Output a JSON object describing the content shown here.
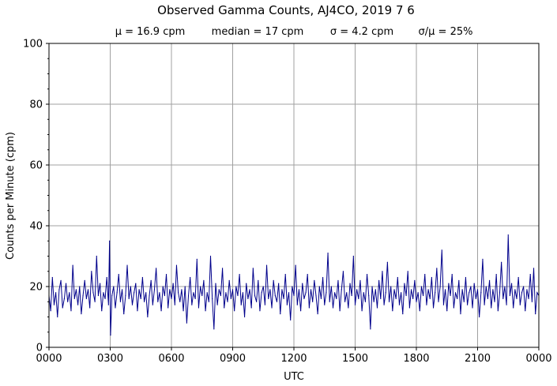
{
  "chart_data": {
    "type": "line",
    "title": "Observed Gamma Counts, AJ4CO, 2019 7 6",
    "subtitle": {
      "mean": "μ = 16.9 cpm",
      "median": "median = 17 cpm",
      "sigma": "σ = 4.2 cpm",
      "ratio": "σ/μ = 25%"
    },
    "xlabel": "UTC",
    "ylabel": "Counts per Minute (cpm)",
    "xlim": [
      0,
      1440
    ],
    "ylim": [
      0,
      100
    ],
    "x_ticks": [
      {
        "value": 0,
        "label": "0000"
      },
      {
        "value": 180,
        "label": "0300"
      },
      {
        "value": 360,
        "label": "0600"
      },
      {
        "value": 540,
        "label": "0900"
      },
      {
        "value": 720,
        "label": "1200"
      },
      {
        "value": 900,
        "label": "1500"
      },
      {
        "value": 1080,
        "label": "1800"
      },
      {
        "value": 1260,
        "label": "2100"
      },
      {
        "value": 1440,
        "label": "0000"
      }
    ],
    "y_ticks": [
      {
        "value": 0,
        "label": "0"
      },
      {
        "value": 20,
        "label": "20"
      },
      {
        "value": 40,
        "label": "40"
      },
      {
        "value": 60,
        "label": "60"
      },
      {
        "value": 80,
        "label": "80"
      },
      {
        "value": 100,
        "label": "100"
      }
    ],
    "y_minor_step": 5,
    "grid": true,
    "line_color": "#00008b",
    "series": [
      {
        "x_unit": "minutes UTC",
        "points": [
          [
            0,
            17
          ],
          [
            5,
            12
          ],
          [
            10,
            23
          ],
          [
            15,
            14
          ],
          [
            20,
            18
          ],
          [
            25,
            10
          ],
          [
            30,
            19
          ],
          [
            35,
            22
          ],
          [
            40,
            13
          ],
          [
            45,
            16
          ],
          [
            50,
            21
          ],
          [
            55,
            15
          ],
          [
            60,
            18
          ],
          [
            65,
            12
          ],
          [
            70,
            27
          ],
          [
            75,
            16
          ],
          [
            80,
            19
          ],
          [
            85,
            14
          ],
          [
            90,
            20
          ],
          [
            95,
            11
          ],
          [
            100,
            17
          ],
          [
            105,
            22
          ],
          [
            110,
            16
          ],
          [
            115,
            19
          ],
          [
            120,
            13
          ],
          [
            125,
            25
          ],
          [
            130,
            18
          ],
          [
            135,
            15
          ],
          [
            140,
            30
          ],
          [
            145,
            17
          ],
          [
            150,
            21
          ],
          [
            155,
            12
          ],
          [
            160,
            18
          ],
          [
            165,
            16
          ],
          [
            170,
            23
          ],
          [
            175,
            14
          ],
          [
            178,
            35
          ],
          [
            181,
            4
          ],
          [
            185,
            17
          ],
          [
            190,
            20
          ],
          [
            195,
            13
          ],
          [
            200,
            18
          ],
          [
            205,
            24
          ],
          [
            210,
            15
          ],
          [
            215,
            19
          ],
          [
            220,
            11
          ],
          [
            225,
            17
          ],
          [
            230,
            27
          ],
          [
            235,
            16
          ],
          [
            240,
            20
          ],
          [
            245,
            14
          ],
          [
            250,
            18
          ],
          [
            255,
            21
          ],
          [
            260,
            12
          ],
          [
            265,
            19
          ],
          [
            270,
            16
          ],
          [
            275,
            23
          ],
          [
            280,
            15
          ],
          [
            285,
            18
          ],
          [
            290,
            10
          ],
          [
            295,
            17
          ],
          [
            300,
            22
          ],
          [
            305,
            14
          ],
          [
            310,
            19
          ],
          [
            315,
            26
          ],
          [
            320,
            15
          ],
          [
            325,
            18
          ],
          [
            330,
            12
          ],
          [
            335,
            20
          ],
          [
            340,
            17
          ],
          [
            345,
            24
          ],
          [
            350,
            13
          ],
          [
            355,
            19
          ],
          [
            360,
            16
          ],
          [
            365,
            21
          ],
          [
            370,
            14
          ],
          [
            375,
            27
          ],
          [
            380,
            18
          ],
          [
            385,
            15
          ],
          [
            390,
            19
          ],
          [
            395,
            12
          ],
          [
            400,
            20
          ],
          [
            405,
            8
          ],
          [
            410,
            17
          ],
          [
            415,
            23
          ],
          [
            420,
            14
          ],
          [
            425,
            18
          ],
          [
            430,
            16
          ],
          [
            435,
            29
          ],
          [
            440,
            13
          ],
          [
            445,
            20
          ],
          [
            450,
            17
          ],
          [
            455,
            22
          ],
          [
            460,
            12
          ],
          [
            465,
            18
          ],
          [
            470,
            15
          ],
          [
            475,
            30
          ],
          [
            480,
            16
          ],
          [
            485,
            6
          ],
          [
            490,
            21
          ],
          [
            495,
            14
          ],
          [
            500,
            19
          ],
          [
            505,
            17
          ],
          [
            510,
            26
          ],
          [
            515,
            13
          ],
          [
            520,
            18
          ],
          [
            525,
            15
          ],
          [
            530,
            22
          ],
          [
            535,
            16
          ],
          [
            540,
            19
          ],
          [
            545,
            12
          ],
          [
            550,
            20
          ],
          [
            555,
            17
          ],
          [
            560,
            24
          ],
          [
            565,
            14
          ],
          [
            570,
            18
          ],
          [
            575,
            10
          ],
          [
            580,
            21
          ],
          [
            585,
            16
          ],
          [
            590,
            19
          ],
          [
            595,
            13
          ],
          [
            600,
            26
          ],
          [
            605,
            17
          ],
          [
            610,
            15
          ],
          [
            615,
            22
          ],
          [
            620,
            12
          ],
          [
            625,
            18
          ],
          [
            630,
            20
          ],
          [
            635,
            14
          ],
          [
            640,
            27
          ],
          [
            645,
            16
          ],
          [
            650,
            19
          ],
          [
            655,
            13
          ],
          [
            660,
            22
          ],
          [
            665,
            17
          ],
          [
            670,
            15
          ],
          [
            675,
            21
          ],
          [
            680,
            11
          ],
          [
            685,
            19
          ],
          [
            690,
            16
          ],
          [
            695,
            24
          ],
          [
            700,
            14
          ],
          [
            705,
            18
          ],
          [
            710,
            9
          ],
          [
            715,
            20
          ],
          [
            720,
            17
          ],
          [
            725,
            27
          ],
          [
            730,
            14
          ],
          [
            735,
            19
          ],
          [
            740,
            12
          ],
          [
            745,
            21
          ],
          [
            750,
            16
          ],
          [
            755,
            18
          ],
          [
            760,
            24
          ],
          [
            765,
            13
          ],
          [
            770,
            19
          ],
          [
            775,
            15
          ],
          [
            780,
            22
          ],
          [
            785,
            17
          ],
          [
            790,
            11
          ],
          [
            795,
            20
          ],
          [
            800,
            16
          ],
          [
            805,
            23
          ],
          [
            810,
            14
          ],
          [
            815,
            18
          ],
          [
            820,
            31
          ],
          [
            825,
            15
          ],
          [
            830,
            20
          ],
          [
            835,
            13
          ],
          [
            840,
            18
          ],
          [
            845,
            16
          ],
          [
            850,
            22
          ],
          [
            855,
            12
          ],
          [
            860,
            19
          ],
          [
            865,
            25
          ],
          [
            870,
            15
          ],
          [
            875,
            18
          ],
          [
            880,
            13
          ],
          [
            885,
            21
          ],
          [
            890,
            17
          ],
          [
            895,
            30
          ],
          [
            900,
            14
          ],
          [
            905,
            19
          ],
          [
            910,
            16
          ],
          [
            915,
            22
          ],
          [
            920,
            12
          ],
          [
            925,
            18
          ],
          [
            930,
            15
          ],
          [
            935,
            24
          ],
          [
            940,
            17
          ],
          [
            945,
            6
          ],
          [
            950,
            20
          ],
          [
            955,
            15
          ],
          [
            960,
            19
          ],
          [
            965,
            13
          ],
          [
            970,
            22
          ],
          [
            975,
            16
          ],
          [
            980,
            25
          ],
          [
            985,
            14
          ],
          [
            990,
            18
          ],
          [
            995,
            28
          ],
          [
            1000,
            15
          ],
          [
            1005,
            20
          ],
          [
            1010,
            12
          ],
          [
            1015,
            19
          ],
          [
            1020,
            16
          ],
          [
            1025,
            23
          ],
          [
            1030,
            14
          ],
          [
            1035,
            18
          ],
          [
            1040,
            11
          ],
          [
            1045,
            21
          ],
          [
            1050,
            17
          ],
          [
            1055,
            25
          ],
          [
            1060,
            13
          ],
          [
            1065,
            19
          ],
          [
            1070,
            16
          ],
          [
            1075,
            22
          ],
          [
            1080,
            15
          ],
          [
            1085,
            18
          ],
          [
            1090,
            12
          ],
          [
            1095,
            20
          ],
          [
            1100,
            17
          ],
          [
            1105,
            24
          ],
          [
            1110,
            14
          ],
          [
            1115,
            19
          ],
          [
            1120,
            16
          ],
          [
            1125,
            23
          ],
          [
            1130,
            13
          ],
          [
            1135,
            18
          ],
          [
            1140,
            26
          ],
          [
            1145,
            15
          ],
          [
            1150,
            20
          ],
          [
            1155,
            32
          ],
          [
            1160,
            14
          ],
          [
            1165,
            19
          ],
          [
            1170,
            12
          ],
          [
            1175,
            21
          ],
          [
            1180,
            17
          ],
          [
            1185,
            24
          ],
          [
            1190,
            13
          ],
          [
            1195,
            18
          ],
          [
            1200,
            16
          ],
          [
            1205,
            22
          ],
          [
            1210,
            11
          ],
          [
            1215,
            19
          ],
          [
            1220,
            15
          ],
          [
            1225,
            23
          ],
          [
            1230,
            14
          ],
          [
            1235,
            18
          ],
          [
            1240,
            20
          ],
          [
            1245,
            13
          ],
          [
            1250,
            21
          ],
          [
            1255,
            16
          ],
          [
            1260,
            19
          ],
          [
            1265,
            10
          ],
          [
            1270,
            18
          ],
          [
            1275,
            29
          ],
          [
            1280,
            14
          ],
          [
            1285,
            20
          ],
          [
            1290,
            16
          ],
          [
            1295,
            22
          ],
          [
            1300,
            13
          ],
          [
            1305,
            19
          ],
          [
            1310,
            15
          ],
          [
            1315,
            24
          ],
          [
            1320,
            12
          ],
          [
            1325,
            18
          ],
          [
            1330,
            28
          ],
          [
            1335,
            16
          ],
          [
            1340,
            20
          ],
          [
            1345,
            14
          ],
          [
            1350,
            37
          ],
          [
            1355,
            17
          ],
          [
            1360,
            21
          ],
          [
            1365,
            13
          ],
          [
            1370,
            19
          ],
          [
            1375,
            16
          ],
          [
            1380,
            23
          ],
          [
            1385,
            14
          ],
          [
            1390,
            18
          ],
          [
            1395,
            20
          ],
          [
            1400,
            12
          ],
          [
            1405,
            19
          ],
          [
            1410,
            16
          ],
          [
            1415,
            24
          ],
          [
            1420,
            15
          ],
          [
            1425,
            26
          ],
          [
            1430,
            11
          ],
          [
            1435,
            18
          ],
          [
            1440,
            17
          ]
        ]
      }
    ]
  }
}
